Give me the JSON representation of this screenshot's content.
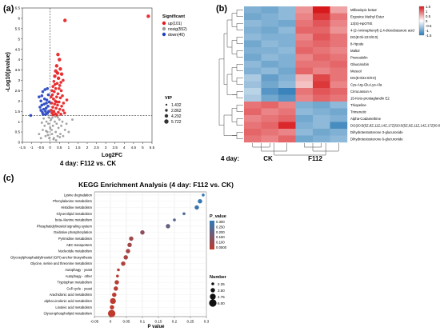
{
  "panels": {
    "a": {
      "label": "(a)",
      "caption": "4 day: F112 vs. CK",
      "legend_title": "Significant",
      "legend_items": [
        {
          "label": "up(101)",
          "color": "#e41a1c"
        },
        {
          "label": "nosig(552)",
          "color": "#999999"
        },
        {
          "label": "down(40)",
          "color": "#1f3fbf"
        }
      ],
      "vip_title": "VIP",
      "vip_items": [
        "1.432",
        "2.862",
        "4.292",
        "5.722"
      ]
    },
    "b": {
      "label": "(b)",
      "caption_prefix": "4 day:",
      "group_labels": [
        "CK",
        "F112"
      ],
      "colorbar_ticks": [
        "1.5",
        "1",
        "0.5",
        "0",
        "-0.5",
        "-1",
        "-1.5"
      ]
    },
    "c": {
      "label": "(c)",
      "title": "KEGG Enrichment Analysis (4 day: F112 vs. CK)",
      "legend_pvalue_title": "P_value",
      "legend_pvalue_ticks": [
        "0.300",
        "0.250",
        "0.200",
        "0.150",
        "0.100",
        "0.0500"
      ],
      "legend_number_title": "Number",
      "legend_number_items": [
        "2.25",
        "3.50",
        "4.75",
        "6.00"
      ]
    }
  },
  "chart_data": [
    {
      "type": "scatter",
      "panel": "a",
      "title": "",
      "xlabel": "Log2FC",
      "ylabel": "-Log10(pvalue)",
      "xlim": [
        -1.5,
        5.5
      ],
      "ylim": [
        0,
        6.5
      ],
      "x_ticks": [
        -1.5,
        -1,
        -0.5,
        0,
        0.5,
        1,
        1.5,
        2,
        2.5,
        3,
        3.5,
        4,
        4.5,
        5,
        5.5
      ],
      "y_ticks": [
        0,
        0.5,
        1,
        1.5,
        2,
        2.5,
        3,
        3.5,
        4,
        4.5,
        5,
        5.5,
        6,
        6.5
      ],
      "threshold_x": 0,
      "threshold_y": 1.3,
      "legend_position": "top-right",
      "series": [
        {
          "name": "up(101)",
          "color": "#e41a1c",
          "points": [
            [
              5.3,
              6.1
            ],
            [
              0.8,
              5.9
            ],
            [
              0.42,
              4.25
            ],
            [
              0.5,
              4.0
            ],
            [
              0.35,
              3.7
            ],
            [
              0.55,
              3.55
            ],
            [
              0.3,
              3.45
            ],
            [
              0.62,
              3.3
            ],
            [
              0.25,
              3.2
            ],
            [
              0.45,
              3.1
            ],
            [
              0.7,
              3.0
            ],
            [
              0.2,
              2.95
            ],
            [
              0.38,
              2.85
            ],
            [
              0.52,
              2.75
            ],
            [
              0.15,
              2.7
            ],
            [
              0.3,
              2.6
            ],
            [
              0.6,
              2.5
            ],
            [
              0.22,
              2.45
            ],
            [
              0.42,
              2.35
            ],
            [
              0.12,
              2.3
            ],
            [
              0.35,
              2.2
            ],
            [
              0.55,
              2.15
            ],
            [
              0.18,
              2.1
            ],
            [
              0.28,
              2.0
            ],
            [
              0.48,
              1.95
            ],
            [
              0.08,
              1.9
            ],
            [
              0.24,
              1.85
            ],
            [
              0.4,
              1.8
            ],
            [
              0.62,
              1.75
            ],
            [
              0.14,
              1.7
            ],
            [
              0.32,
              1.65
            ],
            [
              0.52,
              1.6
            ],
            [
              0.06,
              1.55
            ],
            [
              0.2,
              1.5
            ],
            [
              0.44,
              1.45
            ],
            [
              0.1,
              1.42
            ],
            [
              0.28,
              1.38
            ],
            [
              0.58,
              1.36
            ],
            [
              0.16,
              1.33
            ],
            [
              0.36,
              1.31
            ],
            [
              0.72,
              1.9
            ],
            [
              0.66,
              2.25
            ],
            [
              0.48,
              2.6
            ],
            [
              0.58,
              2.9
            ],
            [
              0.4,
              3.35
            ],
            [
              0.26,
              2.8
            ],
            [
              0.1,
              2.5
            ],
            [
              0.05,
              2.2
            ],
            [
              0.7,
              1.55
            ],
            [
              0.35,
              1.95
            ],
            [
              0.9,
              2.05
            ],
            [
              0.78,
              1.42
            ]
          ]
        },
        {
          "name": "nosig(552)",
          "color": "#999999",
          "points": [
            [
              -0.6,
              0.4
            ],
            [
              -0.5,
              0.2
            ],
            [
              -0.4,
              0.6
            ],
            [
              -0.3,
              0.8
            ],
            [
              -0.25,
              0.3
            ],
            [
              -0.2,
              1.0
            ],
            [
              -0.15,
              0.5
            ],
            [
              -0.1,
              0.9
            ],
            [
              -0.05,
              0.2
            ],
            [
              0.0,
              0.7
            ],
            [
              0.05,
              1.1
            ],
            [
              0.1,
              0.4
            ],
            [
              0.15,
              0.8
            ],
            [
              0.2,
              0.2
            ],
            [
              0.25,
              1.0
            ],
            [
              0.3,
              0.5
            ],
            [
              0.35,
              0.9
            ],
            [
              0.4,
              0.3
            ],
            [
              0.45,
              0.7
            ],
            [
              0.5,
              1.1
            ],
            [
              0.55,
              0.4
            ],
            [
              0.6,
              0.8
            ],
            [
              0.7,
              0.3
            ],
            [
              0.8,
              0.6
            ],
            [
              1.0,
              0.5
            ],
            [
              1.2,
              1.1
            ],
            [
              -0.35,
              1.15
            ],
            [
              -0.45,
              0.95
            ],
            [
              0.12,
              1.2
            ],
            [
              0.28,
              1.25
            ],
            [
              -0.08,
              1.2
            ],
            [
              0.42,
              1.2
            ],
            [
              0.66,
              1.0
            ],
            [
              -0.22,
              0.55
            ],
            [
              0.18,
              0.15
            ],
            [
              0.08,
              0.6
            ],
            [
              -0.12,
              0.35
            ],
            [
              0.32,
              0.1
            ],
            [
              0.52,
              0.25
            ],
            [
              0.88,
              0.9
            ]
          ]
        },
        {
          "name": "down(40)",
          "color": "#1f3fbf",
          "points": [
            [
              -1.05,
              1.3
            ],
            [
              -0.6,
              2.2
            ],
            [
              -0.5,
              2.0
            ],
            [
              -0.45,
              1.8
            ],
            [
              -0.4,
              2.45
            ],
            [
              -0.35,
              1.6
            ],
            [
              -0.3,
              2.1
            ],
            [
              -0.25,
              1.5
            ],
            [
              -0.2,
              1.9
            ],
            [
              -0.15,
              1.4
            ],
            [
              -0.1,
              2.3
            ],
            [
              -0.5,
              1.55
            ],
            [
              -0.42,
              1.45
            ],
            [
              -0.32,
              1.85
            ],
            [
              -0.22,
              1.65
            ],
            [
              -0.12,
              1.75
            ],
            [
              -0.28,
              2.55
            ],
            [
              -0.38,
              1.35
            ],
            [
              -0.18,
              2.05
            ],
            [
              -0.08,
              1.5
            ],
            [
              -0.55,
              1.7
            ],
            [
              -0.05,
              1.95
            ],
            [
              -0.25,
              1.35
            ],
            [
              -0.45,
              2.25
            ],
            [
              -0.15,
              2.6
            ]
          ]
        }
      ]
    },
    {
      "type": "heatmap",
      "panel": "b",
      "title": "",
      "rows": [
        "Millewinpic beta2",
        "Ergosine Methyl Ester",
        "13(S)-HpOTrE",
        "4-(2-Aminophenyl)-2,4-dioxobutanoic acid",
        "DG(8:0/i-22:0/0:0)",
        "8-Hpode",
        "Maltol",
        "Pranoalolin",
        "Glaucarubin",
        "Mesuol",
        "DG(8:0/22:0/0:0)",
        "Cys-Arg-Glu-Lys-Ala",
        "Cirrucasson A",
        "15-Keto-prostaglandin E2",
        "Thiopeline",
        "Trimenetic",
        "Alpha-Codamethine",
        "DG(20:5(5Z,8Z,11Z,14Z,17Z)/20:5(5Z,8Z,11Z,14Z,17Z)/0:0)",
        "Dihydrotestosterone 3-glucuronide",
        "Dihydrotestosterone 6-glucuronide"
      ],
      "groups": [
        "CK",
        "CK",
        "CK",
        "F112",
        "F112",
        "F112"
      ],
      "color_range": [
        -1.5,
        1.5
      ],
      "colors": {
        "low": "#2c7bb6",
        "mid": "#ffffff",
        "high": "#d7191c"
      },
      "values": [
        [
          -0.9,
          -1.0,
          -0.8,
          0.7,
          1.5,
          0.6
        ],
        [
          -1.0,
          -0.9,
          -0.8,
          0.8,
          1.3,
          0.9
        ],
        [
          -0.8,
          -0.9,
          -1.0,
          0.9,
          1.1,
          0.8
        ],
        [
          -0.9,
          -1.0,
          -0.8,
          1.0,
          1.0,
          0.7
        ],
        [
          -0.8,
          -0.9,
          -0.9,
          0.8,
          1.1,
          0.9
        ],
        [
          -1.0,
          -0.8,
          -0.9,
          0.9,
          1.0,
          0.9
        ],
        [
          -0.9,
          -0.9,
          -0.8,
          1.0,
          0.9,
          0.8
        ],
        [
          -1.0,
          -0.8,
          -0.9,
          0.8,
          1.0,
          0.9
        ],
        [
          -0.8,
          -1.0,
          -0.9,
          0.9,
          0.9,
          1.0
        ],
        [
          -0.9,
          -0.8,
          -1.0,
          1.0,
          0.8,
          0.9
        ],
        [
          -0.6,
          -1.1,
          -0.9,
          0.5,
          1.2,
          0.9
        ],
        [
          -0.7,
          -1.0,
          -0.8,
          0.4,
          1.3,
          0.8
        ],
        [
          -0.5,
          -1.2,
          -1.4,
          0.9,
          1.1,
          1.0
        ],
        [
          -0.6,
          -1.0,
          -1.2,
          0.8,
          1.0,
          0.9
        ],
        [
          0.9,
          1.0,
          0.8,
          -0.9,
          -1.0,
          -0.8
        ],
        [
          1.0,
          0.8,
          0.9,
          -0.8,
          -0.9,
          -1.0
        ],
        [
          0.8,
          0.9,
          1.0,
          -1.0,
          -0.8,
          -0.9
        ],
        [
          0.9,
          1.0,
          1.4,
          -0.9,
          -0.8,
          -1.3
        ],
        [
          1.0,
          0.9,
          0.8,
          -0.8,
          -1.0,
          -0.9
        ],
        [
          0.9,
          0.8,
          1.0,
          -1.0,
          -0.9,
          -0.8
        ]
      ]
    },
    {
      "type": "scatter",
      "panel": "c",
      "title": "KEGG Enrichment Analysis (4 day: F112 vs. CK)",
      "xlabel": "P value",
      "ylabel": "",
      "xlim": [
        -0.05,
        0.3
      ],
      "x_ticks": [
        -0.05,
        0,
        0.05,
        0.1,
        0.15,
        0.2,
        0.25,
        0.3
      ],
      "categories": [
        "Lysine degradation",
        "Phenylalanine metabolism",
        "Histidine metabolism",
        "Glycerolipid metabolism",
        "beta-Alanine metabolism",
        "Phosphatidylinositol signaling system",
        "Oxidative phosphorylation",
        "Pyrimidine metabolism",
        "ABC transporters",
        "Nucleotide metabolism",
        "Glycosylphosphatidylinositol (GPI)-anchor biosynthesis",
        "Glycine, serine and threonine metabolism",
        "Autophagy - yeast",
        "Autophagy - other",
        "Tryptophan metabolism",
        "Cell cycle - yeast",
        "Arachidonic acid metabolism",
        "alpha-Linolenic acid metabolism",
        "Linoleic acid metabolism",
        "Glycerophospholipid metabolism"
      ],
      "pvalues": [
        0.29,
        0.28,
        0.27,
        0.23,
        0.2,
        0.18,
        0.1,
        0.065,
        0.06,
        0.055,
        0.048,
        0.04,
        0.025,
        0.022,
        0.02,
        0.017,
        0.012,
        0.008,
        0.005,
        0.004
      ],
      "numbers": [
        2.25,
        3.5,
        3.5,
        2.25,
        2.25,
        3.5,
        3.5,
        3.5,
        3.5,
        3.5,
        3.5,
        3.5,
        2.25,
        2.25,
        3.5,
        3.5,
        3.5,
        4.75,
        3.5,
        6.0
      ],
      "color_range": [
        0,
        0.3
      ],
      "colors": {
        "low": "#c0392b",
        "high": "#2b7bb9"
      }
    }
  ]
}
